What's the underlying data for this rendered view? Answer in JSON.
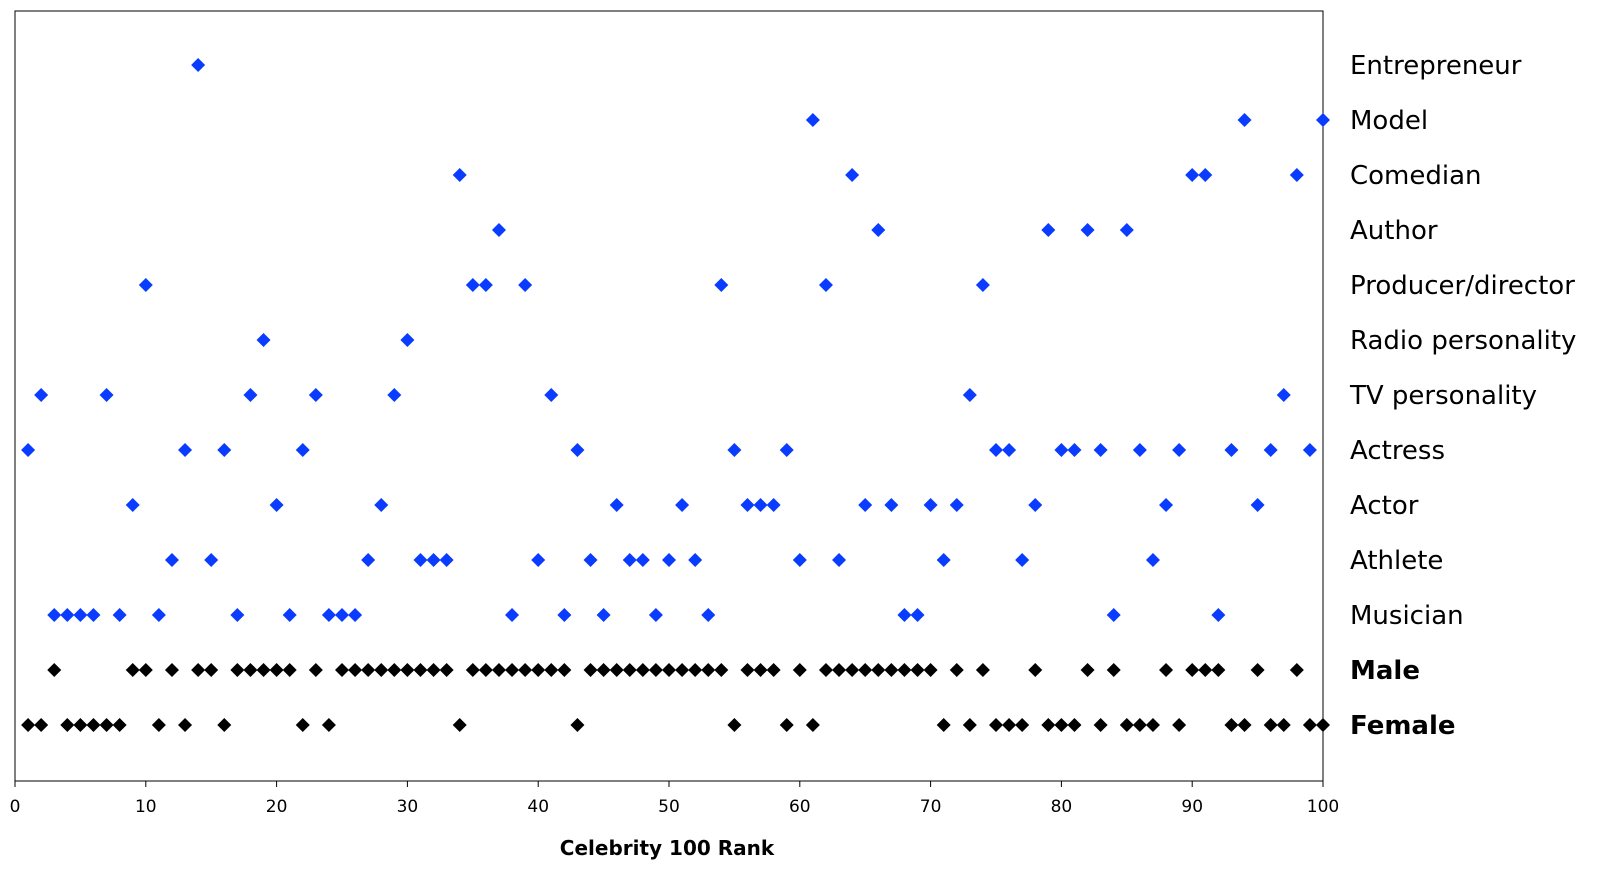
{
  "chart_data": {
    "type": "scatter",
    "title": "",
    "xlabel": "Celebrity 100 Rank",
    "ylabel": "",
    "xlim": [
      0,
      100
    ],
    "xticks": [
      0,
      10,
      20,
      30,
      40,
      50,
      60,
      70,
      80,
      90,
      100
    ],
    "grid": false,
    "legend": "none",
    "marker": "diamond",
    "categories": [
      {
        "label": "Entrepreneur",
        "bold": false,
        "color": "#0a3cff",
        "x": [
          14
        ]
      },
      {
        "label": "Model",
        "bold": false,
        "color": "#0a3cff",
        "x": [
          61,
          94,
          100
        ]
      },
      {
        "label": "Comedian",
        "bold": false,
        "color": "#0a3cff",
        "x": [
          34,
          64,
          90,
          91,
          98
        ]
      },
      {
        "label": "Author",
        "bold": false,
        "color": "#0a3cff",
        "x": [
          37,
          66,
          79,
          82,
          85
        ]
      },
      {
        "label": "Producer/director",
        "bold": false,
        "color": "#0a3cff",
        "x": [
          10,
          35,
          36,
          39,
          54,
          62,
          74
        ]
      },
      {
        "label": "Radio personality",
        "bold": false,
        "color": "#0a3cff",
        "x": [
          19,
          30
        ]
      },
      {
        "label": "TV personality",
        "bold": false,
        "color": "#0a3cff",
        "x": [
          2,
          7,
          18,
          23,
          29,
          41,
          73,
          97
        ]
      },
      {
        "label": "Actress",
        "bold": false,
        "color": "#0a3cff",
        "x": [
          1,
          13,
          16,
          22,
          43,
          55,
          59,
          75,
          76,
          80,
          81,
          83,
          86,
          89,
          93,
          96,
          99
        ]
      },
      {
        "label": "Actor",
        "bold": false,
        "color": "#0a3cff",
        "x": [
          9,
          20,
          28,
          46,
          51,
          56,
          57,
          58,
          65,
          67,
          70,
          72,
          78,
          88,
          95
        ]
      },
      {
        "label": "Athlete",
        "bold": false,
        "color": "#0a3cff",
        "x": [
          12,
          15,
          27,
          31,
          32,
          33,
          40,
          44,
          47,
          48,
          50,
          52,
          60,
          63,
          71,
          77,
          87
        ]
      },
      {
        "label": "Musician",
        "bold": false,
        "color": "#0a3cff",
        "x": [
          3,
          4,
          5,
          6,
          8,
          11,
          17,
          21,
          24,
          25,
          26,
          38,
          42,
          45,
          49,
          53,
          68,
          69,
          84,
          92
        ]
      },
      {
        "label": "Male",
        "bold": true,
        "color": "#000000",
        "x": [
          3,
          9,
          10,
          12,
          14,
          15,
          17,
          18,
          19,
          20,
          21,
          23,
          25,
          26,
          27,
          28,
          29,
          30,
          31,
          32,
          33,
          35,
          36,
          37,
          38,
          39,
          40,
          41,
          42,
          44,
          45,
          46,
          47,
          48,
          49,
          50,
          51,
          52,
          53,
          54,
          56,
          57,
          58,
          60,
          62,
          63,
          64,
          65,
          66,
          67,
          68,
          69,
          70,
          72,
          74,
          78,
          82,
          84,
          88,
          90,
          91,
          92,
          95,
          98
        ]
      },
      {
        "label": "Female",
        "bold": true,
        "color": "#000000",
        "x": [
          1,
          2,
          4,
          5,
          6,
          7,
          8,
          11,
          13,
          16,
          22,
          24,
          34,
          43,
          55,
          59,
          61,
          71,
          73,
          75,
          76,
          77,
          79,
          80,
          81,
          83,
          85,
          86,
          87,
          89,
          93,
          94,
          96,
          97,
          99,
          100
        ]
      }
    ]
  }
}
